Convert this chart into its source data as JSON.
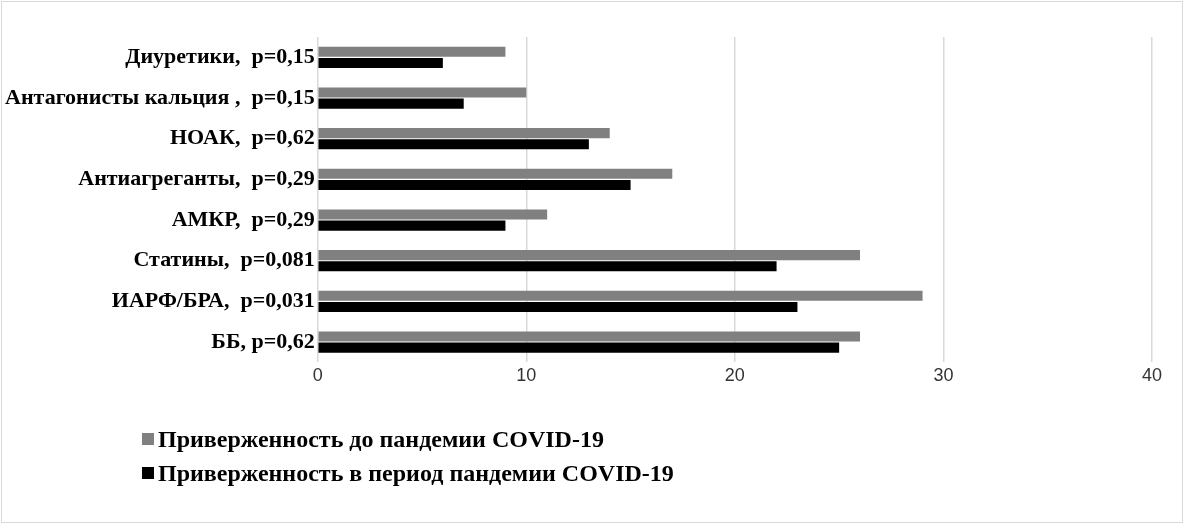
{
  "chart_data": {
    "type": "bar",
    "orientation": "horizontal",
    "categories": [
      "Диуретики,  p=0,15",
      "Антагонисты кальция ,  p=0,15",
      "НОАК,  p=0,62",
      "Антиагреганты,  p=0,29",
      "АМКР,  p=0,29",
      "Статины,  p=0,081",
      "ИАРФ/БРА,  p=0,031",
      "ББ, p=0,62"
    ],
    "series": [
      {
        "name": "Приверженность до пандемии COVID-19",
        "color": "#808080",
        "values": [
          9,
          10,
          14,
          17,
          11,
          26,
          29,
          26
        ]
      },
      {
        "name": "Приверженность в период пандемии COVID-19",
        "color": "#000000",
        "values": [
          6,
          7,
          13,
          15,
          9,
          22,
          23,
          25
        ]
      }
    ],
    "xlim": [
      0,
      40
    ],
    "xticks": [
      0,
      10,
      20,
      30,
      40
    ],
    "grid": "x",
    "legend": "bottom"
  }
}
